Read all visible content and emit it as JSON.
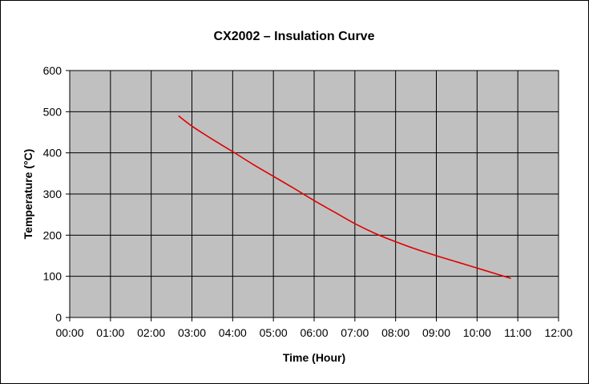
{
  "chart_data": {
    "type": "line",
    "title": "CX2002 – Insulation Curve",
    "xlabel": "Time (Hour)",
    "ylabel": "Temperature (°C)",
    "x_tick_labels": [
      "00:00",
      "01:00",
      "02:00",
      "03:00",
      "04:00",
      "05:00",
      "06:00",
      "07:00",
      "08:00",
      "09:00",
      "10:00",
      "11:00",
      "12:00"
    ],
    "y_ticks": [
      0,
      100,
      200,
      300,
      400,
      500,
      600
    ],
    "xlim": [
      0,
      12
    ],
    "ylim": [
      0,
      600
    ],
    "grid": true,
    "legend": "none",
    "series": [
      {
        "name": "Insulation Curve",
        "color": "#e00000",
        "x": [
          2.67,
          3.0,
          3.5,
          4.0,
          4.5,
          5.0,
          5.5,
          6.0,
          6.5,
          7.0,
          7.5,
          8.0,
          8.5,
          9.0,
          9.5,
          10.0,
          10.5,
          10.83
        ],
        "y": [
          490,
          465,
          433,
          403,
          372,
          343,
          314,
          284,
          256,
          228,
          204,
          184,
          166,
          150,
          135,
          120,
          105,
          95
        ]
      }
    ]
  },
  "colors": {
    "plot_background": "#c0c0c0",
    "grid": "#000000",
    "frame": "#000000"
  }
}
